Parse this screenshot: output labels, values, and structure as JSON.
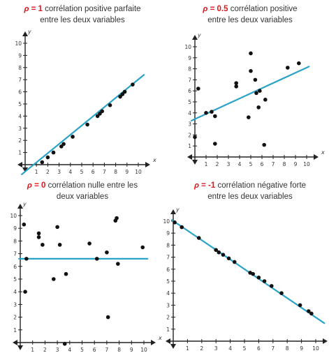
{
  "chart_data": [
    {
      "type": "scatter",
      "title_symbol": "ρ",
      "title_eq": " = ",
      "title_value": "1",
      "title_line1": " corrélation positive parfaite",
      "title_line2": "entre les deux variables",
      "xlabel": "x",
      "ylabel": "y",
      "xlim": [
        0,
        10
      ],
      "ylim": [
        0,
        10
      ],
      "xticks": [
        "1",
        "2",
        "3",
        "4",
        "5",
        "6",
        "7",
        "8",
        "9",
        "10"
      ],
      "yticks": [
        "1",
        "2",
        "3",
        "4",
        "5",
        "6",
        "7",
        "8",
        "9",
        "10"
      ],
      "trend_line": [
        [
          -0.3,
          -0.8
        ],
        [
          10.5,
          7.4
        ]
      ],
      "points": [
        [
          1.5,
          0.2
        ],
        [
          2.0,
          0.6
        ],
        [
          2.5,
          1.0
        ],
        [
          3.2,
          1.5
        ],
        [
          3.4,
          1.7
        ],
        [
          4.2,
          2.3
        ],
        [
          5.5,
          3.3
        ],
        [
          6.4,
          4.0
        ],
        [
          6.6,
          4.2
        ],
        [
          6.8,
          4.4
        ],
        [
          7.5,
          4.9
        ],
        [
          8.4,
          5.6
        ],
        [
          8.6,
          5.8
        ],
        [
          8.8,
          6.0
        ],
        [
          9.5,
          6.6
        ]
      ],
      "color_line": "#2aa3c7",
      "color_points": "#111111",
      "color_title_accent": "#e0161b"
    },
    {
      "type": "scatter",
      "title_symbol": "ρ",
      "title_eq": " = ",
      "title_value": "0.5",
      "title_line1": " corrélation positive",
      "title_line2": "entre les deux variables",
      "xlabel": "x",
      "ylabel": "y",
      "xlim": [
        0,
        10
      ],
      "ylim": [
        0,
        10
      ],
      "xticks": [
        "1",
        "2",
        "3",
        "4",
        "5",
        "6",
        "7",
        "8",
        "9",
        "10"
      ],
      "yticks": [
        "1",
        "2",
        "3",
        "4",
        "5",
        "6",
        "7",
        "8",
        "9",
        "10"
      ],
      "trend_line": [
        [
          -0.3,
          3.3
        ],
        [
          10.2,
          8.2
        ]
      ],
      "points": [
        [
          0.0,
          1.8
        ],
        [
          0.3,
          6.2
        ],
        [
          1.0,
          4.0
        ],
        [
          1.5,
          4.1
        ],
        [
          1.8,
          3.7
        ],
        [
          1.8,
          1.2
        ],
        [
          3.7,
          6.4
        ],
        [
          3.7,
          6.7
        ],
        [
          4.8,
          3.6
        ],
        [
          5.0,
          9.4
        ],
        [
          5.0,
          7.8
        ],
        [
          5.4,
          7.0
        ],
        [
          5.5,
          5.8
        ],
        [
          5.7,
          4.5
        ],
        [
          5.8,
          6.0
        ],
        [
          6.2,
          1.1
        ],
        [
          6.3,
          5.2
        ],
        [
          8.3,
          8.1
        ],
        [
          9.3,
          8.5
        ]
      ],
      "color_line": "#2aa3c7",
      "color_points": "#111111",
      "color_title_accent": "#e0161b"
    },
    {
      "type": "scatter",
      "title_symbol": "ρ",
      "title_eq": " = ",
      "title_value": "0",
      "title_line1": " corrélation nulle entre les",
      "title_line2": "deux variables",
      "xlabel": "x",
      "ylabel": "y",
      "xlim": [
        0,
        10
      ],
      "ylim": [
        0,
        10
      ],
      "xticks": [
        "1",
        "2",
        "3",
        "4",
        "5",
        "6",
        "7",
        "8",
        "9",
        "10"
      ],
      "yticks": [
        "1",
        "2",
        "3",
        "4",
        "5",
        "6",
        "7",
        "8",
        "9",
        "10"
      ],
      "trend_line": [
        [
          -0.1,
          6.6
        ],
        [
          10.3,
          6.6
        ]
      ],
      "points": [
        [
          0.3,
          9.3
        ],
        [
          0.4,
          4.0
        ],
        [
          0.5,
          6.6
        ],
        [
          1.5,
          8.6
        ],
        [
          1.5,
          8.3
        ],
        [
          1.8,
          7.7
        ],
        [
          2.7,
          5.0
        ],
        [
          3.0,
          9.1
        ],
        [
          3.2,
          7.7
        ],
        [
          3.6,
          -0.1
        ],
        [
          3.7,
          5.4
        ],
        [
          5.6,
          7.8
        ],
        [
          6.2,
          6.6
        ],
        [
          7.0,
          7.1
        ],
        [
          7.1,
          2.0
        ],
        [
          7.7,
          9.6
        ],
        [
          7.8,
          9.8
        ],
        [
          7.9,
          6.2
        ],
        [
          9.9,
          7.5
        ]
      ],
      "color_line": "#2aa3c7",
      "color_points": "#111111",
      "color_title_accent": "#e0161b"
    },
    {
      "type": "scatter",
      "title_symbol": "ρ",
      "title_eq": " = ",
      "title_value": "-1",
      "title_line1": " corrélation négative forte",
      "title_line2": "entre les deux variables",
      "xlabel": "x",
      "ylabel": "y",
      "xlim": [
        0,
        10
      ],
      "ylim": [
        0,
        10
      ],
      "xticks": [
        "1",
        "2",
        "3",
        "4",
        "5",
        "6",
        "7",
        "8",
        "9",
        "10"
      ],
      "yticks": [
        "1",
        "2",
        "3",
        "4",
        "5",
        "6",
        "7",
        "8",
        "9",
        "10"
      ],
      "trend_line": [
        [
          -0.1,
          10.1
        ],
        [
          10.6,
          1.5
        ]
      ],
      "points": [
        [
          0.1,
          9.9
        ],
        [
          0.6,
          9.5
        ],
        [
          1.8,
          8.6
        ],
        [
          3.0,
          7.6
        ],
        [
          3.2,
          7.4
        ],
        [
          3.5,
          7.2
        ],
        [
          3.9,
          6.9
        ],
        [
          4.3,
          6.6
        ],
        [
          5.4,
          5.7
        ],
        [
          5.6,
          5.6
        ],
        [
          6.0,
          5.3
        ],
        [
          6.4,
          5.0
        ],
        [
          6.9,
          4.6
        ],
        [
          7.6,
          4.0
        ],
        [
          8.9,
          3.0
        ],
        [
          9.5,
          2.5
        ],
        [
          9.7,
          2.3
        ]
      ],
      "color_line": "#2aa3c7",
      "color_points": "#111111",
      "color_title_accent": "#e0161b"
    }
  ]
}
